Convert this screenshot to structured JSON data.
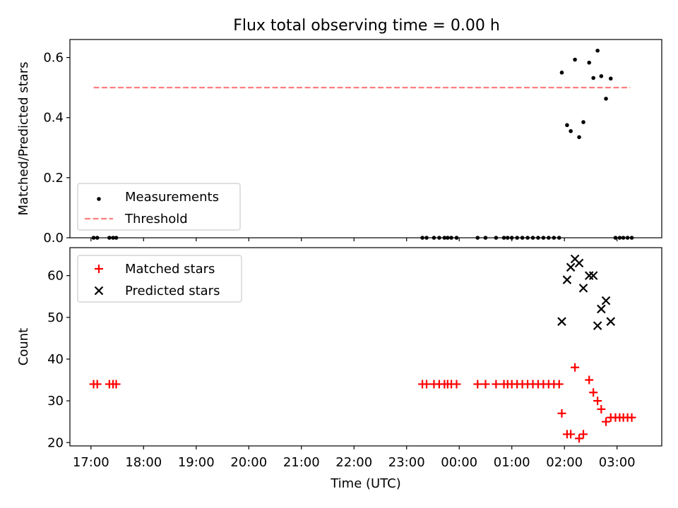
{
  "title": "Flux total observing time = 0.00 h",
  "chart_data": [
    {
      "type": "scatter",
      "ylabel": "Matched/Predicted stars",
      "xlabel": "",
      "xlim": [
        16.6,
        27.85
      ],
      "ylim": [
        0,
        0.66
      ],
      "yticks": [
        0.0,
        0.2,
        0.4,
        0.6
      ],
      "ytick_labels": [
        "0.0",
        "0.2",
        "0.4",
        "0.6"
      ],
      "legend": {
        "placement": "lower-left",
        "entries": [
          {
            "label": "Measurements",
            "marker": "dot",
            "color": "#000000"
          },
          {
            "label": "Threshold",
            "marker": "dashed-line",
            "color": "#ff7f7f"
          }
        ]
      },
      "threshold": {
        "value": 0.5,
        "x_range": [
          17.05,
          27.25
        ],
        "color": "#ff7f7f"
      },
      "series": [
        {
          "name": "Measurements",
          "color": "#000000",
          "points": [
            [
              17.05,
              0
            ],
            [
              17.12,
              0
            ],
            [
              17.35,
              0
            ],
            [
              17.42,
              0
            ],
            [
              17.48,
              0
            ],
            [
              23.3,
              0
            ],
            [
              23.38,
              0
            ],
            [
              23.52,
              0
            ],
            [
              23.62,
              0
            ],
            [
              23.72,
              0
            ],
            [
              23.78,
              0
            ],
            [
              23.85,
              0
            ],
            [
              23.95,
              0
            ],
            [
              24.35,
              0
            ],
            [
              24.5,
              0
            ],
            [
              24.7,
              0
            ],
            [
              24.85,
              0
            ],
            [
              24.92,
              0
            ],
            [
              25.0,
              0
            ],
            [
              25.1,
              0
            ],
            [
              25.2,
              0
            ],
            [
              25.3,
              0
            ],
            [
              25.4,
              0
            ],
            [
              25.5,
              0
            ],
            [
              25.6,
              0
            ],
            [
              25.7,
              0
            ],
            [
              25.8,
              0
            ],
            [
              25.9,
              0
            ],
            [
              25.95,
              0.55
            ],
            [
              26.05,
              0.375
            ],
            [
              26.12,
              0.355
            ],
            [
              26.2,
              0.593
            ],
            [
              26.28,
              0.335
            ],
            [
              26.36,
              0.385
            ],
            [
              26.47,
              0.583
            ],
            [
              26.55,
              0.532
            ],
            [
              26.63,
              0.623
            ],
            [
              26.7,
              0.538
            ],
            [
              26.79,
              0.463
            ],
            [
              26.88,
              0.53
            ],
            [
              26.97,
              0
            ],
            [
              27.05,
              0
            ],
            [
              27.12,
              0
            ],
            [
              27.2,
              0
            ],
            [
              27.28,
              0
            ]
          ]
        }
      ]
    },
    {
      "type": "scatter",
      "ylabel": "Count",
      "xlabel": "Time (UTC)",
      "xlim": [
        16.6,
        27.85
      ],
      "ylim": [
        19.2,
        66.7
      ],
      "yticks": [
        20,
        30,
        40,
        50,
        60
      ],
      "ytick_labels": [
        "20",
        "30",
        "40",
        "50",
        "60"
      ],
      "xticks": [
        17,
        18,
        19,
        20,
        21,
        22,
        23,
        24,
        25,
        26,
        27
      ],
      "xtick_labels": [
        "17:00",
        "18:00",
        "19:00",
        "20:00",
        "21:00",
        "22:00",
        "23:00",
        "00:00",
        "01:00",
        "02:00",
        "03:00"
      ],
      "legend": {
        "placement": "top-left",
        "entries": [
          {
            "label": "Matched stars",
            "marker": "plus",
            "color": "#ff0000"
          },
          {
            "label": "Predicted stars",
            "marker": "x",
            "color": "#000000"
          }
        ]
      },
      "series": [
        {
          "name": "Matched stars",
          "color": "#ff0000",
          "marker": "plus",
          "points": [
            [
              17.05,
              34
            ],
            [
              17.12,
              34
            ],
            [
              17.35,
              34
            ],
            [
              17.42,
              34
            ],
            [
              17.48,
              34
            ],
            [
              23.3,
              34
            ],
            [
              23.38,
              34
            ],
            [
              23.52,
              34
            ],
            [
              23.62,
              34
            ],
            [
              23.72,
              34
            ],
            [
              23.78,
              34
            ],
            [
              23.85,
              34
            ],
            [
              23.95,
              34
            ],
            [
              24.35,
              34
            ],
            [
              24.5,
              34
            ],
            [
              24.7,
              34
            ],
            [
              24.85,
              34
            ],
            [
              24.92,
              34
            ],
            [
              25.0,
              34
            ],
            [
              25.1,
              34
            ],
            [
              25.2,
              34
            ],
            [
              25.3,
              34
            ],
            [
              25.4,
              34
            ],
            [
              25.5,
              34
            ],
            [
              25.6,
              34
            ],
            [
              25.7,
              34
            ],
            [
              25.8,
              34
            ],
            [
              25.9,
              34
            ],
            [
              25.95,
              27
            ],
            [
              26.05,
              22
            ],
            [
              26.12,
              22
            ],
            [
              26.2,
              38
            ],
            [
              26.28,
              21
            ],
            [
              26.36,
              22
            ],
            [
              26.47,
              35
            ],
            [
              26.55,
              32
            ],
            [
              26.63,
              30
            ],
            [
              26.7,
              28
            ],
            [
              26.79,
              25
            ],
            [
              26.88,
              26
            ],
            [
              26.97,
              26
            ],
            [
              27.05,
              26
            ],
            [
              27.12,
              26
            ],
            [
              27.2,
              26
            ],
            [
              27.28,
              26
            ]
          ]
        },
        {
          "name": "Predicted stars",
          "color": "#000000",
          "marker": "x",
          "points": [
            [
              25.95,
              49
            ],
            [
              26.05,
              59
            ],
            [
              26.12,
              62
            ],
            [
              26.2,
              64
            ],
            [
              26.28,
              63
            ],
            [
              26.36,
              57
            ],
            [
              26.47,
              60
            ],
            [
              26.55,
              60
            ],
            [
              26.63,
              48
            ],
            [
              26.7,
              52
            ],
            [
              26.79,
              54
            ],
            [
              26.88,
              49
            ]
          ]
        }
      ]
    }
  ]
}
